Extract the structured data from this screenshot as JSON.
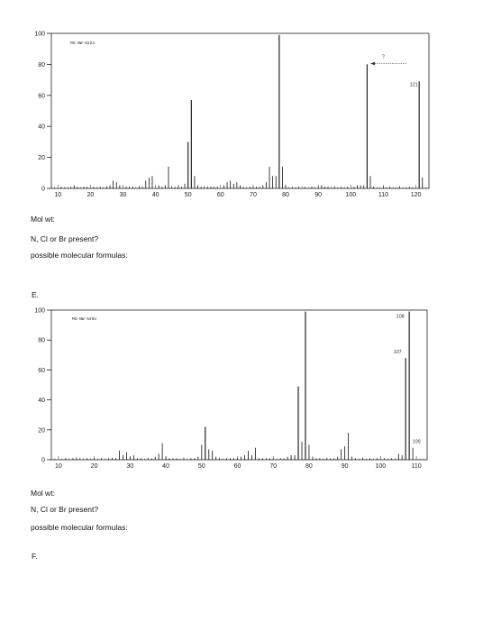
{
  "worksheet": {
    "q1": {
      "mol_wt": "Mol wt:",
      "halogen": "N, Cl or Br present?",
      "formulas": "possible molecular formulas:"
    },
    "section_e": "E.",
    "q2": {
      "mol_wt": "Mol wt:",
      "halogen": "N, Cl or Br present?",
      "formulas": "possible molecular formulas:"
    },
    "section_f": "F."
  },
  "colors": {
    "axis": "#222222",
    "peak": "#111111",
    "annotation": "#333333"
  },
  "chart_data": [
    {
      "type": "bar",
      "title": "MS-NW-6224",
      "xlim": [
        8,
        124
      ],
      "ylim": [
        0,
        100
      ],
      "xticks": [
        10,
        20,
        30,
        40,
        50,
        60,
        70,
        80,
        90,
        100,
        110,
        120
      ],
      "yticks": [
        0,
        20,
        40,
        60,
        80,
        100
      ],
      "peaks": [
        [
          11,
          1
        ],
        [
          14,
          1
        ],
        [
          15,
          2
        ],
        [
          16,
          1
        ],
        [
          18,
          1
        ],
        [
          19,
          1
        ],
        [
          21,
          1
        ],
        [
          23,
          1
        ],
        [
          25,
          1
        ],
        [
          26,
          2
        ],
        [
          27,
          5
        ],
        [
          28,
          4
        ],
        [
          29,
          2
        ],
        [
          31,
          1
        ],
        [
          32,
          1
        ],
        [
          33,
          1
        ],
        [
          35,
          1
        ],
        [
          36,
          1
        ],
        [
          37,
          5
        ],
        [
          38,
          7
        ],
        [
          39,
          8
        ],
        [
          41,
          2
        ],
        [
          42,
          1
        ],
        [
          43,
          2
        ],
        [
          44,
          14
        ],
        [
          45,
          1
        ],
        [
          46,
          1
        ],
        [
          47,
          2
        ],
        [
          48,
          1
        ],
        [
          49,
          3
        ],
        [
          50,
          30
        ],
        [
          51,
          57
        ],
        [
          52,
          8
        ],
        [
          53,
          2
        ],
        [
          54,
          1
        ],
        [
          55,
          1
        ],
        [
          56,
          1
        ],
        [
          57,
          1
        ],
        [
          58,
          1
        ],
        [
          59,
          1
        ],
        [
          61,
          2
        ],
        [
          62,
          4
        ],
        [
          63,
          5
        ],
        [
          64,
          3
        ],
        [
          65,
          4
        ],
        [
          66,
          2
        ],
        [
          67,
          1
        ],
        [
          69,
          1
        ],
        [
          70,
          1
        ],
        [
          71,
          1
        ],
        [
          72,
          1
        ],
        [
          73,
          2
        ],
        [
          74,
          4
        ],
        [
          75,
          14
        ],
        [
          76,
          8
        ],
        [
          77,
          8
        ],
        [
          78,
          99
        ],
        [
          79,
          14
        ],
        [
          80,
          2
        ],
        [
          82,
          1
        ],
        [
          84,
          1
        ],
        [
          86,
          1
        ],
        [
          88,
          1
        ],
        [
          90,
          1
        ],
        [
          91,
          2
        ],
        [
          92,
          1
        ],
        [
          93,
          1
        ],
        [
          95,
          1
        ],
        [
          97,
          1
        ],
        [
          99,
          1
        ],
        [
          101,
          1
        ],
        [
          102,
          2
        ],
        [
          103,
          2
        ],
        [
          104,
          2
        ],
        [
          105,
          80
        ],
        [
          106,
          8
        ],
        [
          107,
          1
        ],
        [
          110,
          1
        ],
        [
          112,
          1
        ],
        [
          115,
          1
        ],
        [
          118,
          1
        ],
        [
          121,
          69
        ],
        [
          122,
          7
        ]
      ],
      "annotations": [
        {
          "text": "121",
          "x": 121
        },
        {
          "text": "?",
          "x": 110
        }
      ],
      "arrow": {
        "from_x": 117,
        "to_x": 106
      }
    },
    {
      "type": "bar",
      "title": "MS-NW-5494",
      "xlim": [
        8,
        113
      ],
      "ylim": [
        0,
        100
      ],
      "xticks": [
        10,
        20,
        30,
        40,
        50,
        60,
        70,
        80,
        90,
        100,
        110
      ],
      "yticks": [
        0,
        20,
        40,
        60,
        80,
        100
      ],
      "peaks": [
        [
          12,
          1
        ],
        [
          14,
          1
        ],
        [
          15,
          1
        ],
        [
          16,
          1
        ],
        [
          18,
          1
        ],
        [
          20,
          1
        ],
        [
          22,
          1
        ],
        [
          24,
          1
        ],
        [
          25,
          1
        ],
        [
          26,
          1
        ],
        [
          27,
          6
        ],
        [
          28,
          3
        ],
        [
          29,
          5
        ],
        [
          30,
          2
        ],
        [
          31,
          3
        ],
        [
          32,
          1
        ],
        [
          33,
          1
        ],
        [
          35,
          1
        ],
        [
          36,
          1
        ],
        [
          37,
          2
        ],
        [
          38,
          4
        ],
        [
          39,
          11
        ],
        [
          40,
          2
        ],
        [
          41,
          1
        ],
        [
          42,
          1
        ],
        [
          43,
          1
        ],
        [
          45,
          1
        ],
        [
          47,
          1
        ],
        [
          48,
          1
        ],
        [
          49,
          2
        ],
        [
          50,
          10
        ],
        [
          51,
          22
        ],
        [
          52,
          7
        ],
        [
          53,
          6
        ],
        [
          54,
          2
        ],
        [
          55,
          1
        ],
        [
          57,
          1
        ],
        [
          58,
          1
        ],
        [
          59,
          1
        ],
        [
          60,
          1
        ],
        [
          61,
          2
        ],
        [
          62,
          3
        ],
        [
          63,
          6
        ],
        [
          64,
          3
        ],
        [
          65,
          8
        ],
        [
          66,
          1
        ],
        [
          67,
          1
        ],
        [
          68,
          1
        ],
        [
          69,
          1
        ],
        [
          70,
          1
        ],
        [
          72,
          1
        ],
        [
          73,
          1
        ],
        [
          74,
          2
        ],
        [
          75,
          3
        ],
        [
          76,
          3
        ],
        [
          77,
          49
        ],
        [
          78,
          12
        ],
        [
          79,
          99
        ],
        [
          80,
          10
        ],
        [
          81,
          2
        ],
        [
          82,
          1
        ],
        [
          83,
          1
        ],
        [
          85,
          1
        ],
        [
          86,
          1
        ],
        [
          87,
          1
        ],
        [
          88,
          2
        ],
        [
          89,
          7
        ],
        [
          90,
          9
        ],
        [
          91,
          18
        ],
        [
          92,
          2
        ],
        [
          93,
          1
        ],
        [
          95,
          1
        ],
        [
          97,
          1
        ],
        [
          99,
          1
        ],
        [
          101,
          1
        ],
        [
          103,
          1
        ],
        [
          105,
          4
        ],
        [
          106,
          3
        ],
        [
          107,
          68
        ],
        [
          108,
          99
        ],
        [
          109,
          8
        ]
      ],
      "annotations": [
        {
          "text": "108",
          "x": 108
        },
        {
          "text": "107",
          "x": 107
        },
        {
          "text": "109",
          "x": 109
        }
      ],
      "arrow": null
    }
  ]
}
